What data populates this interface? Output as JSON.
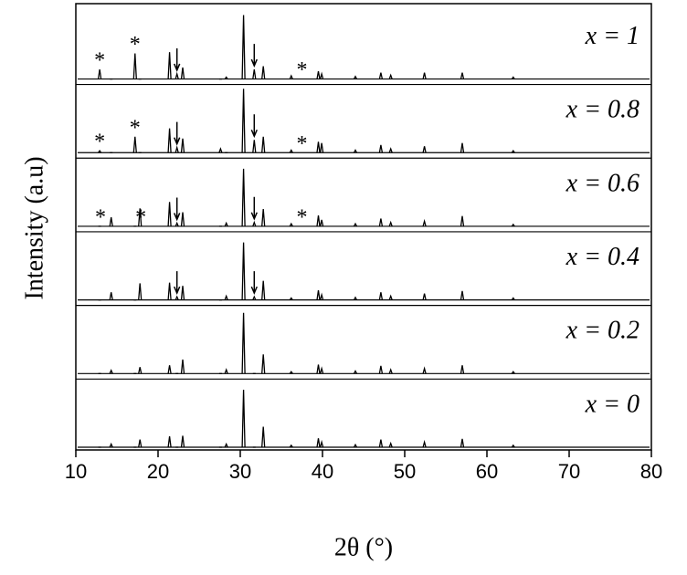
{
  "chart_data": {
    "type": "xrd-stack",
    "x_label": "2θ (°)",
    "y_label": "Intensity (a.u)",
    "xlim": [
      10,
      80
    ],
    "xticks": [
      10,
      20,
      30,
      40,
      50,
      60,
      70,
      80
    ],
    "x": [
      12.9,
      14.3,
      17.2,
      17.8,
      21.4,
      22.3,
      23.0,
      27.6,
      28.3,
      30.4,
      31.7,
      32.8,
      36.2,
      39.5,
      39.9,
      44.0,
      47.1,
      48.3,
      52.4,
      57.0,
      63.2
    ],
    "series": [
      {
        "name": "x = 0",
        "color": "#000000",
        "values": [
          0,
          0.05,
          0,
          0.12,
          0.17,
          0,
          0.18,
          0,
          0.05,
          0.9,
          0,
          0.32,
          0.03,
          0.14,
          0.08,
          0.04,
          0.12,
          0.06,
          0.08,
          0.13,
          0.03
        ],
        "stars": [],
        "arrows": []
      },
      {
        "name": "x = 0.2",
        "color": "#000000",
        "values": [
          0,
          0.05,
          0,
          0.1,
          0.13,
          0,
          0.22,
          0,
          0.06,
          0.95,
          0,
          0.3,
          0.03,
          0.14,
          0.08,
          0.04,
          0.12,
          0.06,
          0.08,
          0.13,
          0.03
        ],
        "stars": [],
        "arrows": []
      },
      {
        "name": "x = 0.4",
        "color": "#000000",
        "values": [
          0,
          0.12,
          0,
          0.26,
          0.27,
          0.05,
          0.22,
          0,
          0.06,
          0.9,
          0.05,
          0.3,
          0.03,
          0.15,
          0.08,
          0.04,
          0.12,
          0.06,
          0.1,
          0.14,
          0.03
        ],
        "stars": [],
        "arrows": [
          22.3,
          31.7
        ]
      },
      {
        "name": "x = 0.6",
        "color": "#000000",
        "values": [
          0,
          0.14,
          0,
          0.28,
          0.38,
          0.05,
          0.22,
          0,
          0.05,
          0.9,
          0.06,
          0.27,
          0.04,
          0.17,
          0.1,
          0.04,
          0.12,
          0.06,
          0.08,
          0.16,
          0.03
        ],
        "stars": [
          {
            "x": 13.0,
            "label": "*"
          },
          {
            "x": 17.9,
            "label": "*"
          },
          {
            "x": 37.5,
            "label": "*"
          }
        ],
        "arrows": [
          22.3,
          31.7
        ]
      },
      {
        "name": "x = 0.8",
        "color": "#000000",
        "values": [
          0.03,
          0,
          0.25,
          0,
          0.38,
          0.08,
          0.22,
          0.06,
          0,
          1.0,
          0.2,
          0.25,
          0.04,
          0.17,
          0.15,
          0.04,
          0.12,
          0.06,
          0.1,
          0.15,
          0.03
        ],
        "stars": [
          {
            "x": 12.9,
            "label": "*"
          },
          {
            "x": 17.2,
            "label": "*"
          },
          {
            "x": 37.5,
            "label": "*"
          }
        ],
        "arrows": [
          22.3,
          31.7
        ]
      },
      {
        "name": "x = 1",
        "color": "#000000",
        "values": [
          0.15,
          0,
          0.4,
          0,
          0.42,
          0.08,
          0.18,
          0,
          0.03,
          1.0,
          0.15,
          0.2,
          0.05,
          0.12,
          0.08,
          0.04,
          0.1,
          0.06,
          0.1,
          0.1,
          0.03
        ],
        "stars": [
          {
            "x": 12.9,
            "label": "*"
          },
          {
            "x": 17.2,
            "label": "*"
          },
          {
            "x": 37.5,
            "label": "*"
          }
        ],
        "arrows": [
          22.3,
          31.7
        ]
      }
    ]
  }
}
